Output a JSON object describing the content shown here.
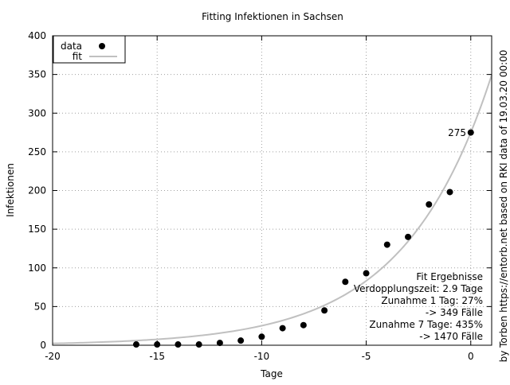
{
  "chart_data": {
    "type": "scatter",
    "title": "Fitting Infektionen in Sachsen",
    "xlabel": "Tage",
    "ylabel": "Infektionen",
    "xlim": [
      -20,
      1
    ],
    "ylim": [
      0,
      400
    ],
    "x_ticks": [
      -20,
      -15,
      -10,
      -5,
      0
    ],
    "y_ticks": [
      0,
      50,
      100,
      150,
      200,
      250,
      300,
      350,
      400
    ],
    "grid": true,
    "legend_position": "top-left",
    "legend": {
      "data_label": "data",
      "fit_label": "fit"
    },
    "series": [
      {
        "name": "data",
        "x": [
          -16,
          -15,
          -14,
          -13,
          -12,
          -11,
          -10,
          -9,
          -8,
          -7,
          -6,
          -5,
          -4,
          -3,
          -2,
          -1,
          0
        ],
        "y": [
          1,
          1,
          1,
          1,
          3,
          6,
          11,
          22,
          26,
          45,
          82,
          93,
          130,
          140,
          182,
          198,
          275
        ]
      },
      {
        "name": "fit",
        "model": "exponential",
        "a": 275,
        "doubling_time_days": 2.9,
        "x_range": [
          -20,
          1
        ],
        "color": "#c0c0c0"
      }
    ],
    "annotations": {
      "point_label": "275",
      "fit_results": [
        "Fit Ergebnisse",
        "Verdopplungszeit: 2.9 Tage",
        "Zunahme 1 Tag: 27%",
        "-> 349 Fälle",
        "Zunahme 7 Tage: 435%",
        "-> 1470 Fälle"
      ],
      "credit": "by Torben https://entorb.net based on RKI data of 19.03.20 00:00"
    }
  }
}
